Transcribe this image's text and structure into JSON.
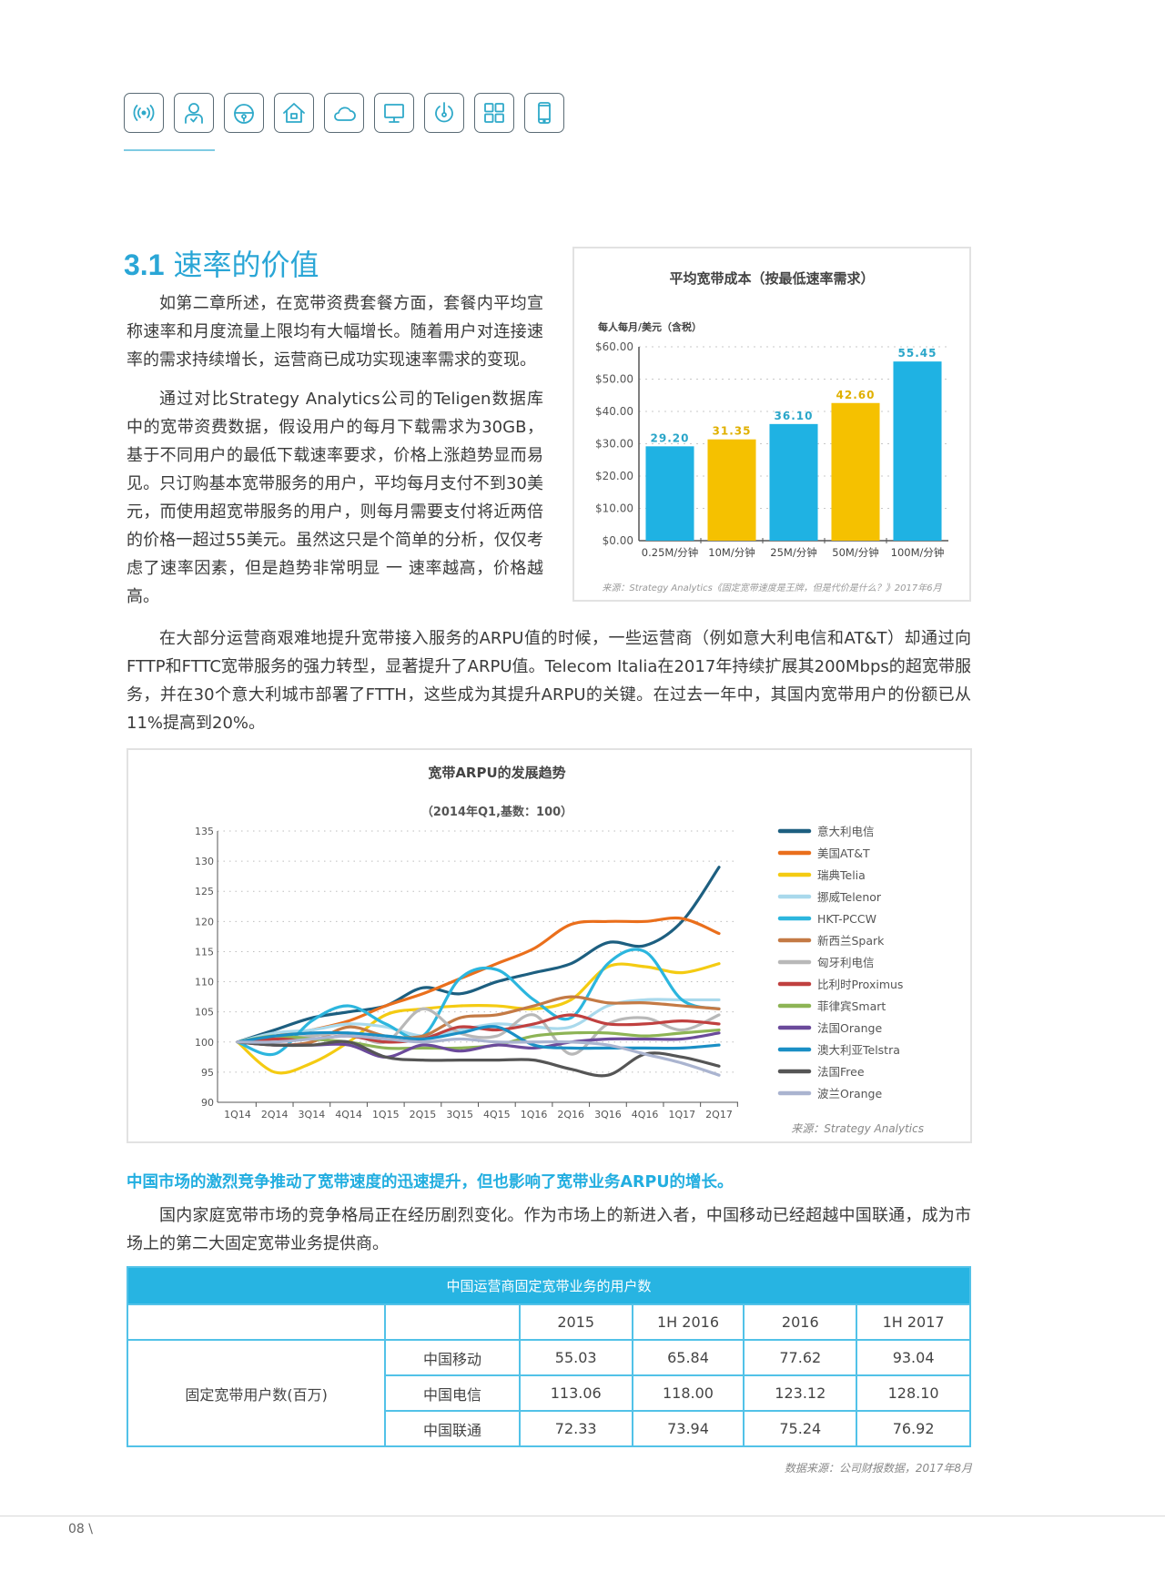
{
  "header": {
    "icons": [
      "wireless-signal-icon",
      "user-check-icon",
      "lock-icon",
      "home-icon",
      "cloud-icon",
      "monitor-icon",
      "power-icon",
      "grid-apps-icon",
      "smartphone-icon"
    ],
    "accent_color": "#2aa6d6"
  },
  "section": {
    "number": "3.1",
    "title": "速率的价值",
    "paragraphs": [
      "如第二章所述，在宽带资费套餐方面，套餐内平均宣称速率和月度流量上限均有大幅增长。随着用户对连接速率的需求持续增长，运营商已成功实现速率需求的变现。",
      "通过对比Strategy Analytics公司的Teligen数据库中的宽带资费数据，假设用户的每月下载需求为30GB，基于不同用户的最低下载速率要求，价格上涨趋势显而易见。只订购基本宽带服务的用户，平均每月支付不到30美元，而使用超宽带服务的用户，则每月需要支付将近两倍的价格一超过55美元。虽然这只是个简单的分析，仅仅考虑了速率因素，但是趋势非常明显 一 速率越高，价格越高。",
      "在大部分运营商艰难地提升宽带接入服务的ARPU值的时候，一些运营商（例如意大利电信和AT&T）却通过向FTTP和FTTC宽带服务的强力转型，显著提升了ARPU值。Telecom  Italia在2017年持续扩展其200Mbps的超宽带服务，并在30个意大利城市部署了FTTH，这些成为其提升ARPU的关键。在过去一年中，其国内宽带用户的份额已从11%提高到20%。"
    ],
    "highlight": "中国市场的激烈竞争推动了宽带速度的迅速提升，但也影响了宽带业务ARPU的增长。",
    "paragraph_china": "国内家庭宽带市场的竞争格局正在经历剧烈变化。作为市场上的新进入者，中国移动已经超越中国联通，成为市场上的第二大固定宽带业务提供商。"
  },
  "chart_data": [
    {
      "type": "bar",
      "title": "平均宽带成本（按最低速率需求）",
      "ylabel": "每人每月/美元（含税）",
      "categories": [
        "0.25M/分钟",
        "10M/分钟",
        "25M/分钟",
        "50M/分钟",
        "100M/分钟"
      ],
      "values": [
        29.2,
        31.35,
        36.1,
        42.6,
        55.45
      ],
      "value_labels": [
        "29.20",
        "31.35",
        "36.10",
        "42.60",
        "55.45"
      ],
      "bar_colors": [
        "#1fb2e3",
        "#f5c100",
        "#1fb2e3",
        "#f5c100",
        "#1fb2e3"
      ],
      "yticks": [
        "$0.00",
        "$10.00",
        "$20.00",
        "$30.00",
        "$40.00",
        "$50.00",
        "$60.00"
      ],
      "ylim": [
        0,
        60
      ],
      "grid": true,
      "source": "来源：Strategy Analytics《固定宽带速度是王牌，但是代价是什么？》2017年6月"
    },
    {
      "type": "line",
      "title": "宽带ARPU的发展趋势",
      "subtitle": "（2014年Q1,基数：100）",
      "x": [
        "1Q14",
        "2Q14",
        "3Q14",
        "4Q14",
        "1Q15",
        "2Q15",
        "3Q15",
        "4Q15",
        "1Q16",
        "2Q16",
        "3Q16",
        "4Q16",
        "1Q17",
        "2Q17"
      ],
      "yticks": [
        "90",
        "95",
        "100",
        "105",
        "110",
        "115",
        "120",
        "125",
        "130",
        "135"
      ],
      "ylim": [
        90,
        135
      ],
      "grid": true,
      "legend_position": "right",
      "source": "来源：Strategy Analytics",
      "series": [
        {
          "name": "意大利电信",
          "color": "#1d5f80",
          "values": [
            100,
            102,
            104,
            105,
            106,
            109,
            108,
            110,
            111.5,
            113,
            116.5,
            116,
            120,
            129
          ]
        },
        {
          "name": "美国AT&T",
          "color": "#ea6f1c",
          "values": [
            100,
            101,
            102,
            103.5,
            106,
            108,
            110.5,
            113,
            115.5,
            119.5,
            120,
            120,
            120.5,
            118
          ]
        },
        {
          "name": "瑞典Telia",
          "color": "#f4cb12",
          "values": [
            100,
            95,
            96.5,
            100,
            104.5,
            105.5,
            106,
            106,
            105.5,
            107,
            112.5,
            112.5,
            111.5,
            113
          ]
        },
        {
          "name": "挪威Telenor",
          "color": "#a9d9ec",
          "values": [
            100,
            101.5,
            102,
            103,
            102.5,
            101,
            102,
            103,
            102.5,
            102.5,
            106,
            107,
            107,
            107
          ]
        },
        {
          "name": "HKT-PCCW",
          "color": "#2cb6de",
          "values": [
            100,
            98,
            103.5,
            106,
            103,
            101,
            110.5,
            112,
            107,
            104,
            113,
            115,
            107,
            105.5
          ]
        },
        {
          "name": "新西兰Spark",
          "color": "#c47a45",
          "values": [
            100,
            99.5,
            100,
            102.5,
            101,
            101,
            104,
            104.5,
            106,
            107.5,
            106.5,
            106.5,
            106,
            105.5
          ]
        },
        {
          "name": "匈牙利电信",
          "color": "#b8b8b8",
          "values": [
            100,
            100.5,
            101,
            101.5,
            100,
            105.5,
            101.5,
            101,
            104.5,
            98,
            103,
            104,
            102,
            104.5
          ]
        },
        {
          "name": "比利时Proximus",
          "color": "#c0403f",
          "values": [
            100,
            100.5,
            100.5,
            101,
            100,
            100.5,
            102.5,
            102,
            103,
            104.5,
            103,
            103,
            103.5,
            103
          ]
        },
        {
          "name": "菲律宾Smart",
          "color": "#8db455",
          "values": [
            100,
            101,
            100.5,
            100,
            99,
            99,
            99,
            99.5,
            101,
            101.5,
            101.5,
            101,
            101.5,
            102
          ]
        },
        {
          "name": "法国Orange",
          "color": "#6b4a9b",
          "values": [
            100,
            99.5,
            99.5,
            99.5,
            97.5,
            99.5,
            98.5,
            99.5,
            99,
            100,
            100.5,
            100.5,
            100.5,
            101.5
          ]
        },
        {
          "name": "澳大利亚Telstra",
          "color": "#1a8fc5",
          "values": [
            100,
            101,
            101.5,
            101.5,
            101,
            100.5,
            101.5,
            102.5,
            99.5,
            99,
            99,
            99,
            99,
            99.5
          ]
        },
        {
          "name": "法国Free",
          "color": "#555555",
          "values": [
            100,
            99.5,
            99.5,
            100,
            97.5,
            97,
            97,
            97,
            97,
            95.5,
            94.5,
            98,
            97.5,
            96
          ]
        },
        {
          "name": "波兰Orange",
          "color": "#aab4d0",
          "values": [
            100,
            100,
            100.5,
            101,
            100.5,
            100,
            100.5,
            100,
            100,
            100,
            99.5,
            98,
            96.5,
            94.5
          ]
        }
      ]
    }
  ],
  "table": {
    "title": "中国运营商固定宽带业务的用户数",
    "columns": [
      "2015",
      "1H  2016",
      "2016",
      "1H  2017"
    ],
    "row_group": "固定宽带用户数(百万)",
    "rows": [
      {
        "label": "中国移动",
        "values": [
          "55.03",
          "65.84",
          "77.62",
          "93.04"
        ]
      },
      {
        "label": "中国电信",
        "values": [
          "113.06",
          "118.00",
          "123.12",
          "128.10"
        ]
      },
      {
        "label": "中国联通",
        "values": [
          "72.33",
          "73.94",
          "75.24",
          "76.92"
        ]
      }
    ],
    "source": "数据来源：公司财报数据，2017年8月"
  },
  "footer": {
    "page": "08 \\"
  }
}
